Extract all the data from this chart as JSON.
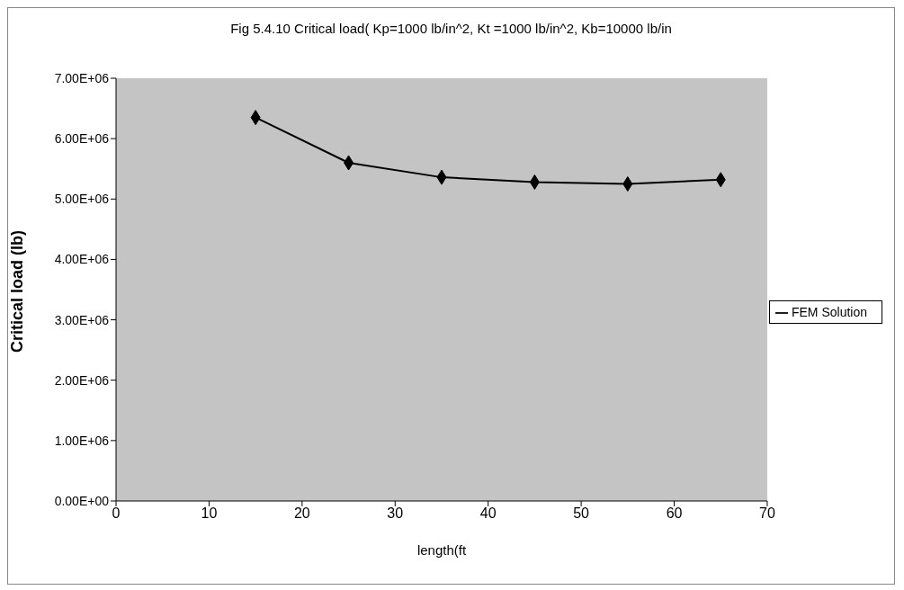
{
  "chart_data": {
    "type": "line",
    "title": "Fig 5.4.10  Critical load( Kp=1000 lb/in^2, Kt =1000 lb/in^2, Kb=10000 lb/in",
    "xlabel": "length(ft",
    "ylabel": "Critical load (lb)",
    "x": [
      15,
      25,
      35,
      45,
      55,
      65
    ],
    "series": [
      {
        "name": "FEM Solution",
        "color": "#000000",
        "values": [
          6350000,
          5600000,
          5360000,
          5280000,
          5250000,
          5320000
        ]
      }
    ],
    "xlim": [
      0,
      70
    ],
    "xticks": [
      0,
      10,
      20,
      30,
      40,
      50,
      60,
      70
    ],
    "ylim": [
      0,
      7000000
    ],
    "yticks": [
      {
        "value": 0,
        "label": "0.00E+00"
      },
      {
        "value": 1000000,
        "label": "1.00E+06"
      },
      {
        "value": 2000000,
        "label": "2.00E+06"
      },
      {
        "value": 3000000,
        "label": "3.00E+06"
      },
      {
        "value": 4000000,
        "label": "4.00E+06"
      },
      {
        "value": 5000000,
        "label": "5.00E+06"
      },
      {
        "value": 6000000,
        "label": "6.00E+06"
      },
      {
        "value": 7000000,
        "label": "7.00E+06"
      }
    ],
    "legend": "right",
    "marker": "diamond"
  }
}
